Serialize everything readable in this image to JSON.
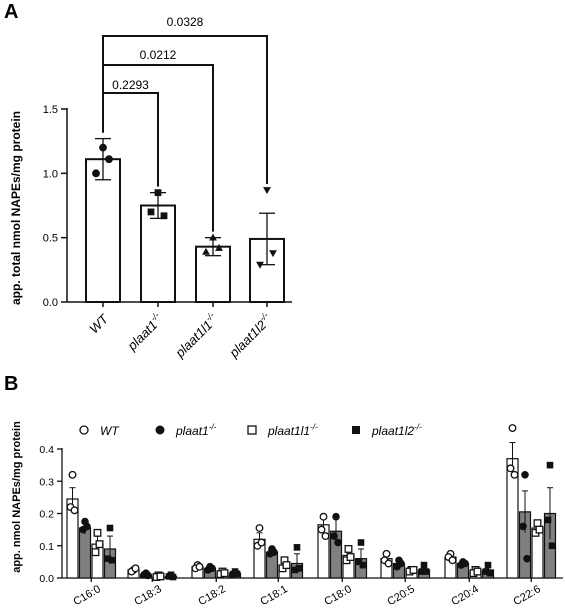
{
  "panels": {
    "a_label": "A",
    "b_label": "B"
  },
  "chart_data": [
    {
      "type": "bar",
      "panel": "A",
      "ylabel": "app. total nmol NAPEs/mg protein",
      "ylim": [
        0,
        1.5
      ],
      "yticks": [
        "0.0",
        "0.5",
        "1.0",
        "1.5"
      ],
      "categories": [
        {
          "base": "WT",
          "sup": ""
        },
        {
          "base": "plaat1",
          "sup": "-/-"
        },
        {
          "base": "plaat1l1",
          "sup": "-/-"
        },
        {
          "base": "plaat1l2",
          "sup": "-/-"
        }
      ],
      "series": [
        {
          "values": [
            1.11,
            0.75,
            0.43,
            0.49
          ],
          "errors": [
            0.16,
            0.1,
            0.07,
            0.2
          ],
          "points": [
            [
              1.2,
              1.0,
              1.11
            ],
            [
              0.85,
              0.7,
              0.67
            ],
            [
              0.5,
              0.39,
              0.42
            ],
            [
              0.87,
              0.29,
              0.38
            ]
          ],
          "markers": [
            "circle",
            "square",
            "triangle-up",
            "triangle-down"
          ]
        }
      ],
      "significance": [
        {
          "from": 0,
          "to": 1,
          "label": "0.2293"
        },
        {
          "from": 0,
          "to": 2,
          "label": "0.0212"
        },
        {
          "from": 0,
          "to": 3,
          "label": "0.0328"
        }
      ],
      "grid": false
    },
    {
      "type": "bar",
      "panel": "B",
      "ylabel": "app. nmol NAPEs/mg protein",
      "ylim": [
        0,
        0.4
      ],
      "yticks": [
        "0.0",
        "0.1",
        "0.2",
        "0.3",
        "0.4"
      ],
      "categories": [
        "C16:0",
        "C18:3",
        "C18:2",
        "C18:1",
        "C18:0",
        "C20:5",
        "C20:4",
        "C22:6"
      ],
      "legend_position": "top",
      "series": [
        {
          "name_base": "WT",
          "name_sup": "",
          "italic": true,
          "marker": "open-circle",
          "fill": "#ffffff",
          "values": [
            0.245,
            0.025,
            0.035,
            0.12,
            0.165,
            0.06,
            0.065,
            0.37
          ],
          "errors": [
            0.035,
            0.006,
            0.008,
            0.02,
            0.03,
            0.01,
            0.01,
            0.05
          ],
          "points": [
            [
              0.32,
              0.22,
              0.21
            ],
            [
              0.025,
              0.02,
              0.03
            ],
            [
              0.04,
              0.03,
              0.035
            ],
            [
              0.155,
              0.1,
              0.11
            ],
            [
              0.19,
              0.15,
              0.13
            ],
            [
              0.075,
              0.055,
              0.045
            ],
            [
              0.075,
              0.065,
              0.055
            ],
            [
              0.465,
              0.34,
              0.32
            ]
          ]
        },
        {
          "name_base": "plaat1",
          "name_sup": "-/-",
          "italic": true,
          "marker": "filled-circle",
          "fill": "#808080",
          "values": [
            0.155,
            0.01,
            0.03,
            0.08,
            0.145,
            0.045,
            0.045,
            0.205
          ],
          "errors": [
            0.02,
            0.004,
            0.006,
            0.01,
            0.04,
            0.01,
            0.006,
            0.065
          ],
          "points": [
            [
              0.175,
              0.15,
              0.16
            ],
            [
              0.015,
              0.01,
              0.008
            ],
            [
              0.035,
              0.025,
              0.03
            ],
            [
              0.09,
              0.075,
              0.08
            ],
            [
              0.19,
              0.13,
              0.11
            ],
            [
              0.055,
              0.035,
              0.045
            ],
            [
              0.05,
              0.04,
              0.045
            ],
            [
              0.32,
              0.16,
              0.06
            ]
          ]
        },
        {
          "name_base": "plaat1l1",
          "name_sup": "-/-",
          "italic": true,
          "marker": "open-square",
          "fill": "#ffffff",
          "values": [
            0.105,
            0.005,
            0.015,
            0.04,
            0.07,
            0.025,
            0.02,
            0.155
          ],
          "errors": [
            0.025,
            0.003,
            0.005,
            0.01,
            0.02,
            0.005,
            0.006,
            0.025
          ],
          "points": [
            [
              0.14,
              0.08,
              0.105
            ],
            [
              0.008,
              0.003,
              0.005
            ],
            [
              0.02,
              0.012,
              0.015
            ],
            [
              0.055,
              0.03,
              0.04
            ],
            [
              0.09,
              0.055,
              0.065
            ],
            [
              0.025,
              0.02,
              0.025
            ],
            [
              0.025,
              0.015,
              0.02
            ],
            [
              0.17,
              0.14,
              0.15
            ]
          ]
        },
        {
          "name_base": "plaat1l2",
          "name_sup": "-/-",
          "italic": true,
          "marker": "filled-square",
          "fill": "#808080",
          "values": [
            0.09,
            0.005,
            0.015,
            0.045,
            0.06,
            0.025,
            0.025,
            0.2
          ],
          "errors": [
            0.04,
            0.003,
            0.006,
            0.03,
            0.03,
            0.008,
            0.008,
            0.08
          ],
          "points": [
            [
              0.155,
              0.06,
              0.055
            ],
            [
              0.01,
              0.005,
              0.003
            ],
            [
              0.02,
              0.012,
              0.013
            ],
            [
              0.095,
              0.025,
              0.03
            ],
            [
              0.11,
              0.05,
              0.04
            ],
            [
              0.04,
              0.02,
              0.02
            ],
            [
              0.04,
              0.02,
              0.015
            ],
            [
              0.35,
              0.18,
              0.1
            ]
          ]
        }
      ],
      "grid": false
    }
  ]
}
